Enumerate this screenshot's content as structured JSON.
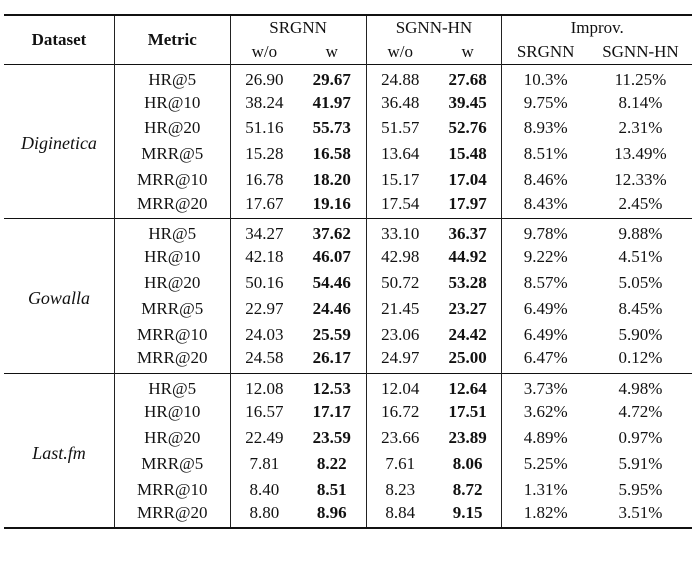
{
  "header": {
    "dataset": "Dataset",
    "metric": "Metric",
    "srgnn": "SRGNN",
    "sgnn_hn": "SGNN-HN",
    "improv": "Improv.",
    "wo": "w/o",
    "w": "w",
    "improv_srgnn": "SRGNN",
    "improv_sgnn_hn": "SGNN-HN"
  },
  "groups": [
    {
      "name": "Diginetica",
      "rows": [
        {
          "metric": "HR@5",
          "srgnn_wo": "26.90",
          "srgnn_w": "29.67",
          "sgnn_wo": "24.88",
          "sgnn_w": "27.68",
          "imp_srgnn": "10.3%",
          "imp_sgnn": "11.25%"
        },
        {
          "metric": "HR@10",
          "srgnn_wo": "38.24",
          "srgnn_w": "41.97",
          "sgnn_wo": "36.48",
          "sgnn_w": "39.45",
          "imp_srgnn": "9.75%",
          "imp_sgnn": "8.14%"
        },
        {
          "metric": "HR@20",
          "srgnn_wo": "51.16",
          "srgnn_w": "55.73",
          "sgnn_wo": "51.57",
          "sgnn_w": "52.76",
          "imp_srgnn": "8.93%",
          "imp_sgnn": "2.31%"
        },
        {
          "metric": "MRR@5",
          "srgnn_wo": "15.28",
          "srgnn_w": "16.58",
          "sgnn_wo": "13.64",
          "sgnn_w": "15.48",
          "imp_srgnn": "8.51%",
          "imp_sgnn": "13.49%"
        },
        {
          "metric": "MRR@10",
          "srgnn_wo": "16.78",
          "srgnn_w": "18.20",
          "sgnn_wo": "15.17",
          "sgnn_w": "17.04",
          "imp_srgnn": "8.46%",
          "imp_sgnn": "12.33%"
        },
        {
          "metric": "MRR@20",
          "srgnn_wo": "17.67",
          "srgnn_w": "19.16",
          "sgnn_wo": "17.54",
          "sgnn_w": "17.97",
          "imp_srgnn": "8.43%",
          "imp_sgnn": "2.45%"
        }
      ]
    },
    {
      "name": "Gowalla",
      "rows": [
        {
          "metric": "HR@5",
          "srgnn_wo": "34.27",
          "srgnn_w": "37.62",
          "sgnn_wo": "33.10",
          "sgnn_w": "36.37",
          "imp_srgnn": "9.78%",
          "imp_sgnn": "9.88%"
        },
        {
          "metric": "HR@10",
          "srgnn_wo": "42.18",
          "srgnn_w": "46.07",
          "sgnn_wo": "42.98",
          "sgnn_w": "44.92",
          "imp_srgnn": "9.22%",
          "imp_sgnn": "4.51%"
        },
        {
          "metric": "HR@20",
          "srgnn_wo": "50.16",
          "srgnn_w": "54.46",
          "sgnn_wo": "50.72",
          "sgnn_w": "53.28",
          "imp_srgnn": "8.57%",
          "imp_sgnn": "5.05%"
        },
        {
          "metric": "MRR@5",
          "srgnn_wo": "22.97",
          "srgnn_w": "24.46",
          "sgnn_wo": "21.45",
          "sgnn_w": "23.27",
          "imp_srgnn": "6.49%",
          "imp_sgnn": "8.45%"
        },
        {
          "metric": "MRR@10",
          "srgnn_wo": "24.03",
          "srgnn_w": "25.59",
          "sgnn_wo": "23.06",
          "sgnn_w": "24.42",
          "imp_srgnn": "6.49%",
          "imp_sgnn": "5.90%"
        },
        {
          "metric": "MRR@20",
          "srgnn_wo": "24.58",
          "srgnn_w": "26.17",
          "sgnn_wo": "24.97",
          "sgnn_w": "25.00",
          "imp_srgnn": "6.47%",
          "imp_sgnn": "0.12%"
        }
      ]
    },
    {
      "name": "Last.fm",
      "rows": [
        {
          "metric": "HR@5",
          "srgnn_wo": "12.08",
          "srgnn_w": "12.53",
          "sgnn_wo": "12.04",
          "sgnn_w": "12.64",
          "imp_srgnn": "3.73%",
          "imp_sgnn": "4.98%"
        },
        {
          "metric": "HR@10",
          "srgnn_wo": "16.57",
          "srgnn_w": "17.17",
          "sgnn_wo": "16.72",
          "sgnn_w": "17.51",
          "imp_srgnn": "3.62%",
          "imp_sgnn": "4.72%"
        },
        {
          "metric": "HR@20",
          "srgnn_wo": "22.49",
          "srgnn_w": "23.59",
          "sgnn_wo": "23.66",
          "sgnn_w": "23.89",
          "imp_srgnn": "4.89%",
          "imp_sgnn": "0.97%"
        },
        {
          "metric": "MRR@5",
          "srgnn_wo": "7.81",
          "srgnn_w": "8.22",
          "sgnn_wo": "7.61",
          "sgnn_w": "8.06",
          "imp_srgnn": "5.25%",
          "imp_sgnn": "5.91%"
        },
        {
          "metric": "MRR@10",
          "srgnn_wo": "8.40",
          "srgnn_w": "8.51",
          "sgnn_wo": "8.23",
          "sgnn_w": "8.72",
          "imp_srgnn": "1.31%",
          "imp_sgnn": "5.95%"
        },
        {
          "metric": "MRR@20",
          "srgnn_wo": "8.80",
          "srgnn_w": "8.96",
          "sgnn_wo": "8.84",
          "sgnn_w": "9.15",
          "imp_srgnn": "1.82%",
          "imp_sgnn": "3.51%"
        }
      ]
    }
  ]
}
